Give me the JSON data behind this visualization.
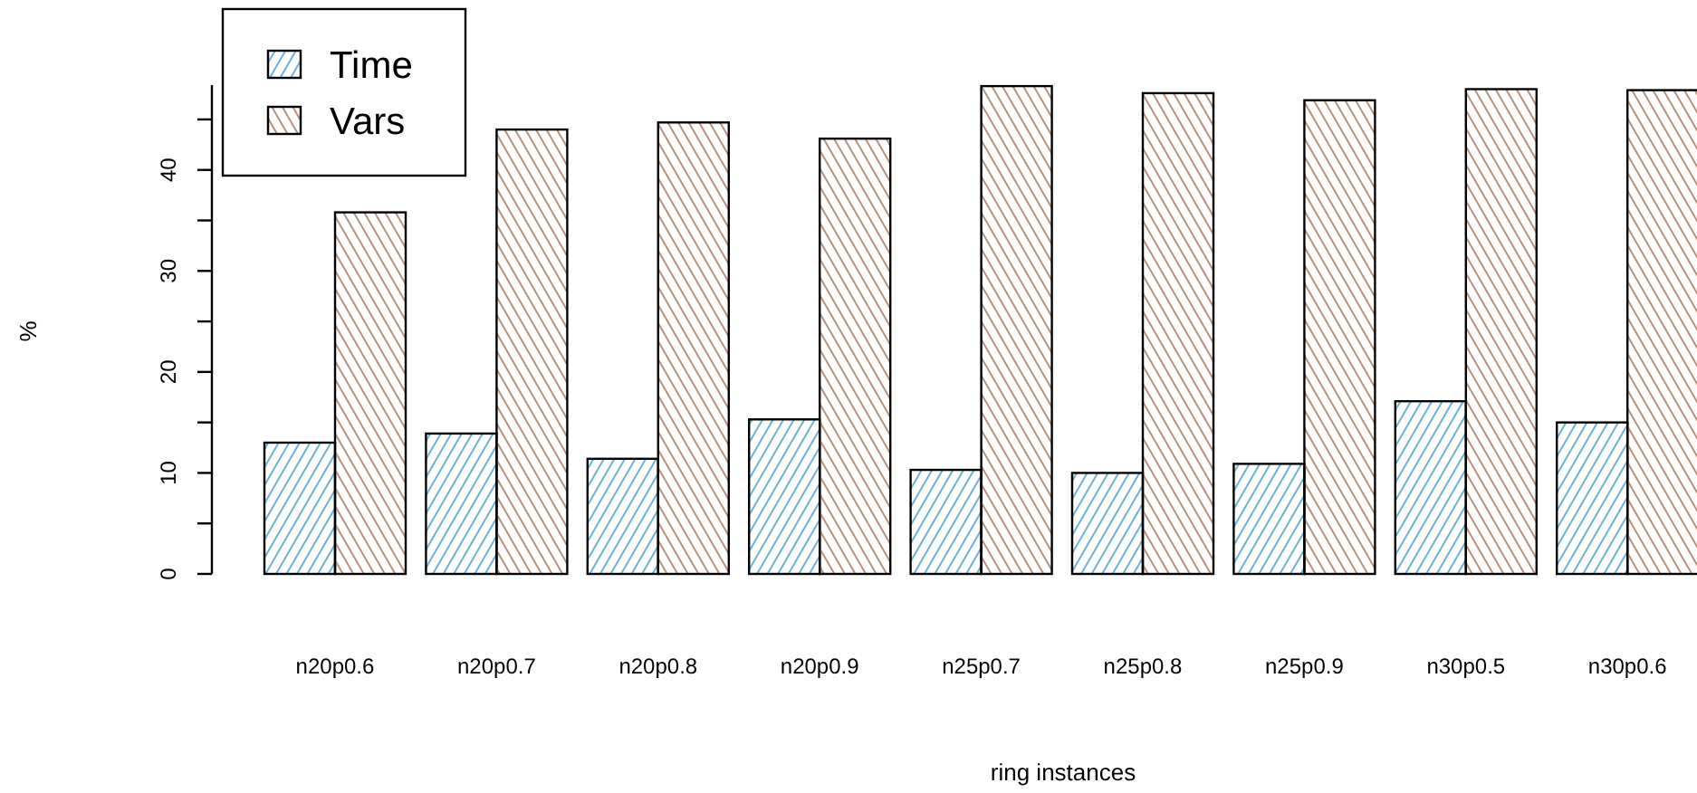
{
  "chart_data": {
    "type": "bar",
    "xlabel": "ring instances",
    "ylabel": "%",
    "categories": [
      "n20p0.6",
      "n20p0.7",
      "n20p0.8",
      "n20p0.9",
      "n25p0.7",
      "n25p0.8",
      "n25p0.9",
      "n30p0.5",
      "n30p0.6"
    ],
    "series": [
      {
        "name": "Time",
        "color": "#6bb3d6",
        "values": [
          13.0,
          13.9,
          11.4,
          15.3,
          10.3,
          10.0,
          10.9,
          17.1,
          15.0
        ]
      },
      {
        "name": "Vars",
        "color": "#b8927a",
        "values": [
          35.8,
          44.0,
          44.7,
          43.1,
          48.3,
          47.6,
          46.9,
          48.0,
          47.9
        ]
      }
    ],
    "ylim": [
      0,
      48.4
    ],
    "yticks": [
      0,
      10,
      20,
      30,
      40
    ],
    "legend": "top left"
  }
}
